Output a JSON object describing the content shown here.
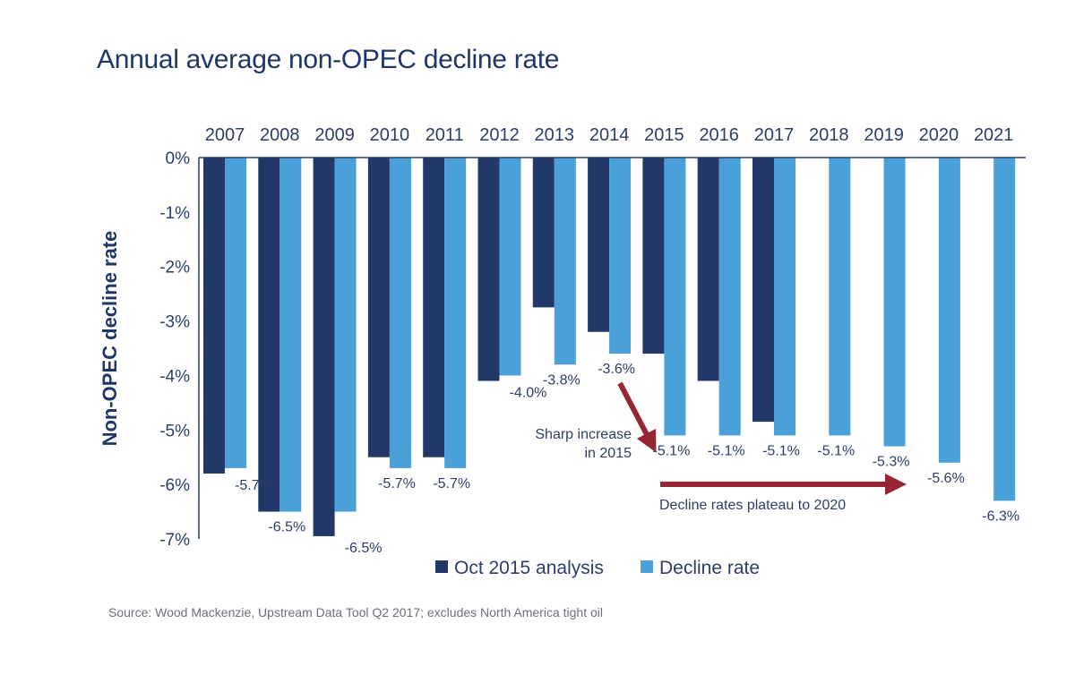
{
  "title": "Annual average non-OPEC decline rate",
  "source": "Source: Wood Mackenzie, Upstream Data Tool Q2 2017; excludes North America tight oil",
  "colors": {
    "oct2015": "#213868",
    "decline": "#4aa0d8",
    "arrow": "#962634",
    "text": "#2d3d68"
  },
  "chart_data": {
    "type": "bar",
    "title": "Annual average non-OPEC decline rate",
    "xlabel": "",
    "ylabel": "Non-OPEC decline rate",
    "ylim": [
      -7,
      0
    ],
    "yticks": [
      "0%",
      "-1%",
      "-2%",
      "-3%",
      "-4%",
      "-5%",
      "-6%",
      "-7%"
    ],
    "ytick_values": [
      0,
      -1,
      -2,
      -3,
      -4,
      -5,
      -6,
      -7
    ],
    "x_axis_position": "top",
    "grid": false,
    "legend_position": "bottom-center",
    "categories": [
      "2007",
      "2008",
      "2009",
      "2010",
      "2011",
      "2012",
      "2013",
      "2014",
      "2015",
      "2016",
      "2017",
      "2018",
      "2019",
      "2020",
      "2021"
    ],
    "series": [
      {
        "name": "Oct 2015 analysis",
        "values": [
          -5.8,
          -6.5,
          -6.95,
          -5.5,
          -5.5,
          -4.1,
          -2.75,
          -3.2,
          -3.6,
          -4.1,
          -4.85,
          null,
          null,
          null,
          null
        ]
      },
      {
        "name": "Decline rate",
        "values": [
          -5.7,
          -6.5,
          -6.5,
          -5.7,
          -5.7,
          -4.0,
          -3.8,
          -3.6,
          -5.1,
          -5.1,
          -5.1,
          -5.1,
          -5.3,
          -5.6,
          -6.3
        ],
        "labels": [
          "-5.7%",
          "-6.5%",
          "-6.5%",
          "-5.7%",
          "-5.7%",
          "-4.0%",
          "-3.8%",
          "-3.6%",
          "-5.1%",
          "-5.1%",
          "-5.1%",
          "-5.1%",
          "-5.3%",
          "-5.6%",
          "-6.3%"
        ]
      }
    ],
    "annotations": [
      {
        "text_lines": [
          "Sharp increase",
          "in 2015"
        ],
        "arrow_from": "2014",
        "arrow_to": "2015"
      },
      {
        "text": "Decline rates plateau to 2020",
        "arrow_from": "2015",
        "arrow_to": "2019"
      }
    ]
  }
}
